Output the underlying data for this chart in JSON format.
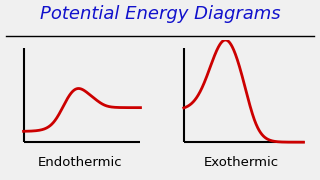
{
  "title": "Potential Energy Diagrams",
  "title_color": "#1111CC",
  "title_fontsize": 13,
  "background_color": "#F0F0F0",
  "label_endothermic": "Endothermic",
  "label_exothermic": "Exothermic",
  "label_fontsize": 9.5,
  "curve_color": "#CC0000",
  "curve_linewidth": 2.0,
  "axis_color": "#000000",
  "underline_color": "#000000"
}
